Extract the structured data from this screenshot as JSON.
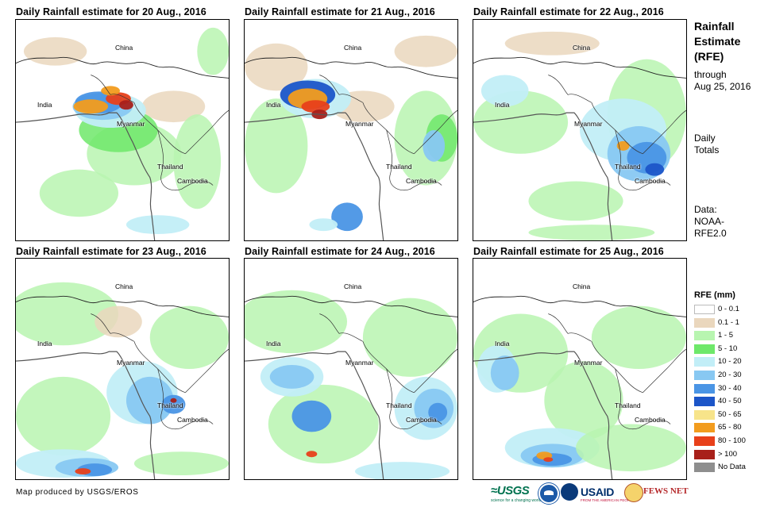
{
  "panels": [
    {
      "title": "Daily Rainfall estimate for 20 Aug., 2016"
    },
    {
      "title": "Daily Rainfall estimate for 21 Aug., 2016"
    },
    {
      "title": "Daily Rainfall estimate for 22 Aug., 2016"
    },
    {
      "title": "Daily Rainfall estimate for 23 Aug., 2016"
    },
    {
      "title": "Daily Rainfall estimate for 24 Aug., 2016"
    },
    {
      "title": "Daily Rainfall estimate for 25 Aug., 2016"
    }
  ],
  "map_labels": {
    "china": "China",
    "india": "India",
    "myanmar": "Myanmar",
    "thailand": "Thailand",
    "cambodia": "Cambodia"
  },
  "sidebar": {
    "title_line1": "Rainfall",
    "title_line2": "Estimate",
    "title_line3": "(RFE)",
    "through_label": "through",
    "through_date": "Aug 25, 2016",
    "daily_line1": "Daily",
    "daily_line2": "Totals",
    "data_line1": "Data:",
    "data_line2": "NOAA-",
    "data_line3": "RFE2.0"
  },
  "legend": {
    "title": "RFE (mm)",
    "items": [
      {
        "label": "0 - 0.1",
        "color": "#ffffff"
      },
      {
        "label": "0.1 - 1",
        "color": "#ead7bd"
      },
      {
        "label": "1 - 5",
        "color": "#b8f5b0"
      },
      {
        "label": "5 - 10",
        "color": "#6ee86a"
      },
      {
        "label": "10 - 20",
        "color": "#c2eef7"
      },
      {
        "label": "20 - 30",
        "color": "#88c8f2"
      },
      {
        "label": "30 - 40",
        "color": "#4a95e5"
      },
      {
        "label": "40 - 50",
        "color": "#1c55c8"
      },
      {
        "label": "50 - 65",
        "color": "#f7e48a"
      },
      {
        "label": "65 - 80",
        "color": "#f29c1e"
      },
      {
        "label": "80 - 100",
        "color": "#e8401a"
      },
      {
        "label": "> 100",
        "color": "#a8201a"
      },
      {
        "label": "No Data",
        "color": "#8e8e8e"
      }
    ]
  },
  "footer": {
    "credit": "Map produced by USGS/EROS"
  },
  "logos": {
    "usgs": "≈USGS",
    "usgs_tagline": "science for a changing world",
    "usaid": "USAID",
    "usaid_tagline": "FROM THE AMERICAN PEOPLE",
    "fews": "FEWS NET"
  }
}
